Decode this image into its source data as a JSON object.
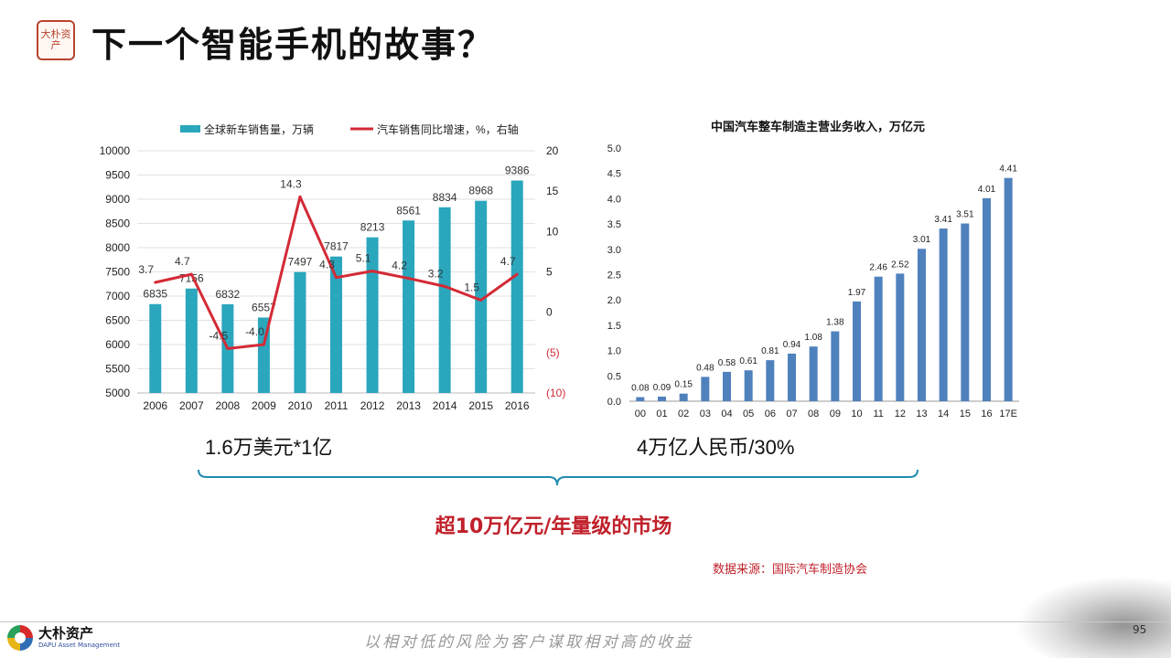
{
  "header": {
    "title": "下一个智能手机的故事？",
    "seal_text": "大朴资产"
  },
  "chart_data": [
    {
      "type": "bar+line",
      "categories": [
        "2006",
        "2007",
        "2008",
        "2009",
        "2010",
        "2011",
        "2012",
        "2013",
        "2014",
        "2015",
        "2016"
      ],
      "series": [
        {
          "name": "全球新车销售量，万辆",
          "type": "bar",
          "axis": "left",
          "color": "#2aa6bd",
          "values": [
            6835,
            7156,
            6832,
            6557,
            7497,
            7817,
            8213,
            8561,
            8834,
            8968,
            9386
          ],
          "labels": [
            "6835",
            "7156",
            "6832",
            "6557",
            "7497",
            "7817",
            "8213",
            "8561",
            "8834",
            "8968",
            "9386"
          ]
        },
        {
          "name": "汽车销售同比增速，%，右轴",
          "type": "line",
          "axis": "right",
          "color": "#d42a36",
          "values": [
            3.7,
            4.7,
            -4.5,
            -4.0,
            14.3,
            4.3,
            5.1,
            4.2,
            3.2,
            1.5,
            4.7
          ],
          "labels": [
            "3.7",
            "4.7",
            "-4.5",
            "-4.0",
            "14.3",
            "4.3",
            "5.1",
            "4.2",
            "3.2",
            "1.5",
            "4.7"
          ]
        }
      ],
      "ylim_left": [
        5000,
        10000
      ],
      "ylim_right": [
        -10,
        20
      ],
      "yticks_left": [
        "10000",
        "9500",
        "9000",
        "8500",
        "8000",
        "7500",
        "7000",
        "6500",
        "6000",
        "5500",
        "5000"
      ],
      "yticks_right": [
        "20",
        "15",
        "10",
        "5",
        "0",
        "(5)",
        "(10)"
      ],
      "legend_position": "top",
      "grid": true
    },
    {
      "type": "bar",
      "title": "中国汽车整车制造主营业务收入，万亿元",
      "categories": [
        "00",
        "01",
        "02",
        "03",
        "04",
        "05",
        "06",
        "07",
        "08",
        "09",
        "10",
        "11",
        "12",
        "13",
        "14",
        "15",
        "16",
        "17E"
      ],
      "values": [
        0.08,
        0.09,
        0.15,
        0.48,
        0.58,
        0.61,
        0.81,
        0.94,
        1.08,
        1.38,
        1.97,
        2.46,
        2.52,
        3.01,
        3.41,
        3.51,
        4.01,
        4.41
      ],
      "labels": [
        "0.08",
        "0.09",
        "0.15",
        "0.48",
        "0.58",
        "0.61",
        "0.81",
        "0.94",
        "1.08",
        "1.38",
        "1.97",
        "2.46",
        "2.52",
        "3.01",
        "3.41",
        "3.51",
        "4.01",
        "4.41"
      ],
      "ylim": [
        0,
        5
      ],
      "yticks": [
        "5.0",
        "4.5",
        "4.0",
        "3.5",
        "3.0",
        "2.5",
        "2.0",
        "1.5",
        "1.0",
        "0.5",
        "0.0"
      ],
      "color": "#4f81bd",
      "grid": false
    }
  ],
  "captions": {
    "left": "1.6万美元*1亿",
    "right": "4万亿人民币/30%",
    "market": "超10万亿元/年量级的市场",
    "source": "数据来源：国际汽车制造协会"
  },
  "footer": {
    "logo_cn": "大朴资产",
    "logo_en": "DAPU Asset Management",
    "slogan": "以相对低的风险为客户谋取相对高的收益",
    "page_number": "95"
  }
}
